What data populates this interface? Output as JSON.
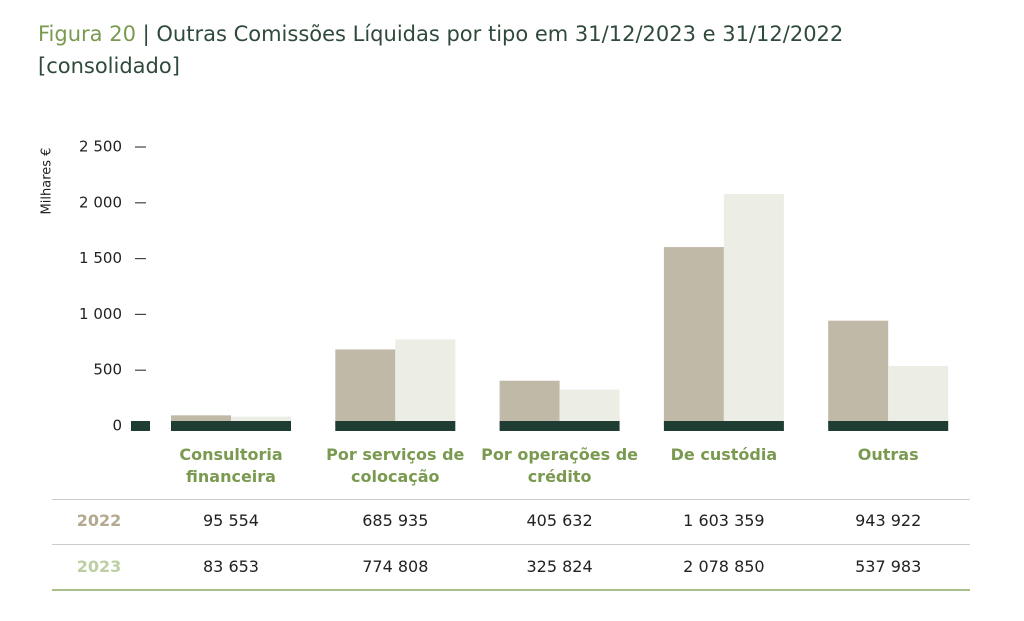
{
  "chart_data": {
    "type": "bar",
    "figure_label": "Figura 20",
    "separator": "|",
    "title": "Outras Comissões Líquidas por tipo em 31/12/2023 e 31/12/2022 [consolidado]",
    "y_label": "Milhares €",
    "categories": [
      "Consultoria financeira",
      "Por serviços de colocação",
      "Por operações de crédito",
      "De custódia",
      "Outras"
    ],
    "series": [
      {
        "name": "2022",
        "color": "#c1b9a8",
        "label_color": "#b3a98f",
        "values": [
          95.554,
          685.935,
          405.632,
          1603.359,
          943.922
        ],
        "value_labels": [
          "95 554",
          "685 935",
          "405 632",
          "1 603 359",
          "943 922"
        ]
      },
      {
        "name": "2023",
        "color": "#eceee5",
        "label_color": "#bccfa3",
        "values": [
          83.653,
          774.808,
          325.824,
          2078.85,
          537.983
        ],
        "value_labels": [
          "83 653",
          "774 808",
          "325 824",
          "2 078 850",
          "537 983"
        ]
      }
    ],
    "ylim": [
      0,
      2500
    ],
    "yticks": [
      0,
      {
        "value": 500,
        "label": "500"
      },
      {
        "value": 1000,
        "label": "1 000"
      },
      {
        "value": 1500,
        "label": "1 500"
      },
      {
        "value": 2000,
        "label": "2 000"
      },
      {
        "value": 2500,
        "label": "2 500"
      }
    ]
  }
}
